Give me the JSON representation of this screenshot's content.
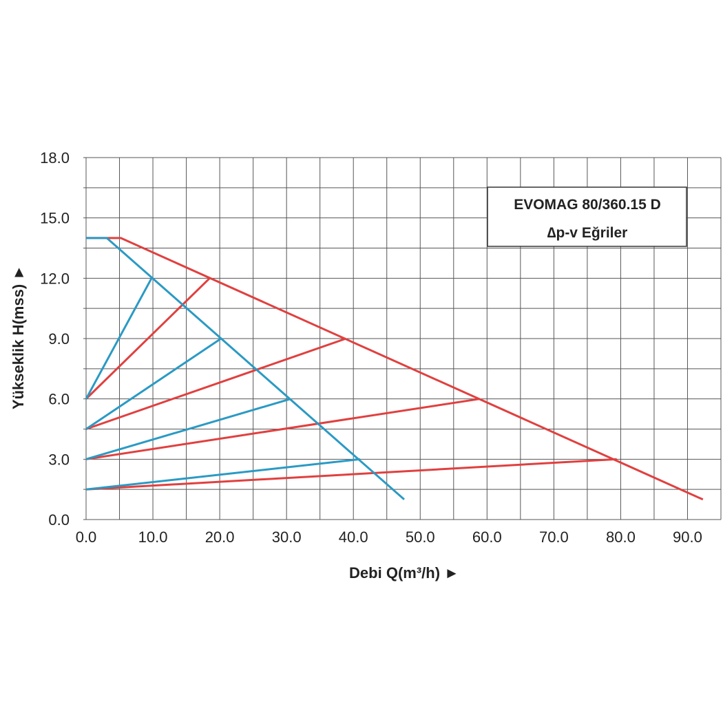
{
  "chart_data": {
    "type": "line",
    "title": "EVOMAG 80/360.15 D",
    "subtitle": "∆p-v Eğriler",
    "xlabel": "Debi Q(m³/h) ►",
    "ylabel": "Yükseklik H(mss) ►",
    "xlim": [
      0,
      95
    ],
    "ylim": [
      0,
      18
    ],
    "grid": true,
    "legend_position": "top-right",
    "x_ticks": [
      "0.0",
      "10.0",
      "20.0",
      "30.0",
      "40.0",
      "50.0",
      "60.0",
      "70.0",
      "80.0",
      "90.0"
    ],
    "y_ticks": [
      "0.0",
      "3.0",
      "6.0",
      "9.0",
      "12.0",
      "15.0",
      "18.0"
    ],
    "x_tick_values": [
      0,
      10,
      20,
      30,
      40,
      50,
      60,
      70,
      80,
      90
    ],
    "y_tick_values": [
      0,
      3,
      6,
      9,
      12,
      15,
      18
    ],
    "series": [
      {
        "color": "#e0403f",
        "x": [
          0,
          5.2,
          92.3
        ],
        "y": [
          14,
          14,
          1.0
        ]
      },
      {
        "color": "#e0403f",
        "x": [
          0,
          18.5
        ],
        "y": [
          6,
          12
        ]
      },
      {
        "color": "#e0403f",
        "x": [
          0,
          38.9
        ],
        "y": [
          4.5,
          9
        ]
      },
      {
        "color": "#e0403f",
        "x": [
          0,
          58.9
        ],
        "y": [
          3,
          6
        ]
      },
      {
        "color": "#e0403f",
        "x": [
          0,
          79.4
        ],
        "y": [
          1.5,
          3
        ]
      },
      {
        "color": "#2a9ac4",
        "x": [
          0,
          3.1,
          47.6
        ],
        "y": [
          14,
          14,
          1.0
        ]
      },
      {
        "color": "#2a9ac4",
        "x": [
          0,
          9.8
        ],
        "y": [
          6,
          12
        ]
      },
      {
        "color": "#2a9ac4",
        "x": [
          0,
          20.2
        ],
        "y": [
          4.5,
          9
        ]
      },
      {
        "color": "#2a9ac4",
        "x": [
          0,
          30.6
        ],
        "y": [
          3,
          6
        ]
      },
      {
        "color": "#2a9ac4",
        "x": [
          0,
          41.0
        ],
        "y": [
          1.5,
          3
        ]
      }
    ]
  }
}
